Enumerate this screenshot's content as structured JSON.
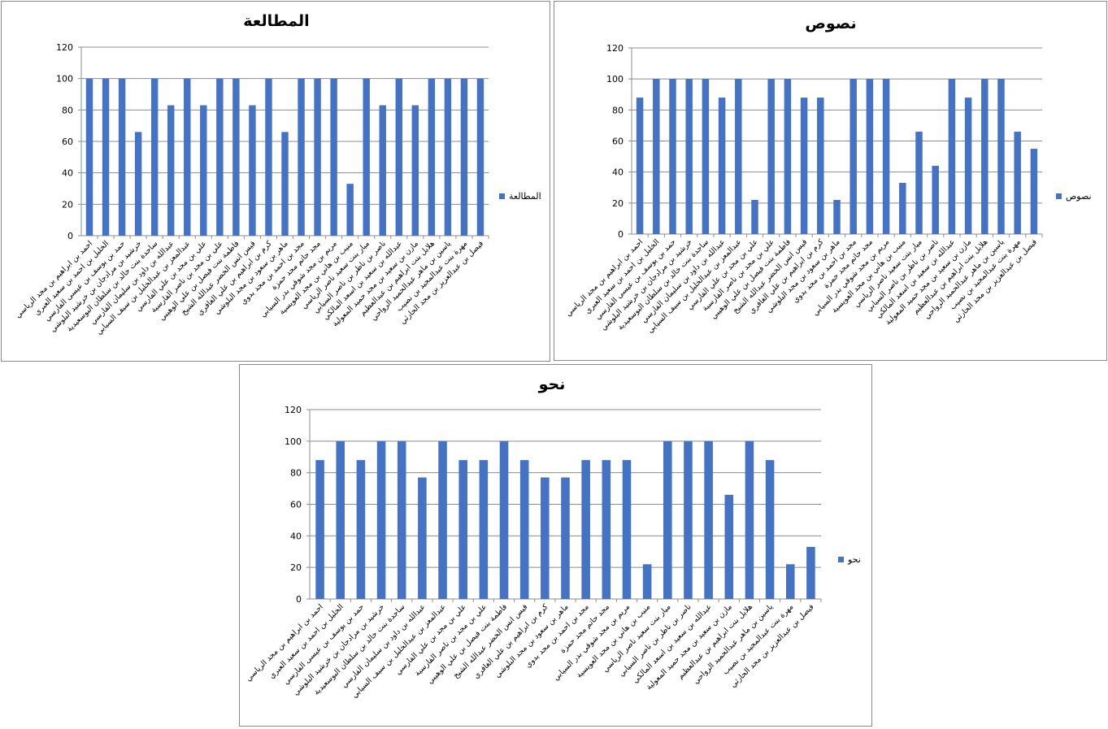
{
  "chart_data": [
    {
      "type": "bar",
      "title": "المطالعة",
      "legend_position": "right",
      "grid": true,
      "ylim": [
        0,
        120
      ],
      "yticks": [
        "0",
        "20",
        "40",
        "60",
        "80",
        "100",
        "120"
      ],
      "color": "#4472C4",
      "categories": [
        "احمد بن ابراهيم بن مجد الرياسي",
        "الخليل بن احمد بن سعيد العبري",
        "حمد بن يوسف بن عيسى الفارسي",
        "خرشيد بن مرادجان بن خرشيد البلوشي",
        "ساجدة بنت خالد بن سلطان البوسعيدية",
        "عبدالله بن داود بن سليمان الفارسي",
        "عبدالمعز بن عبدالخليل بن سيف السيابي",
        "علي بن مجد بن علي الفارسي",
        "علي بن مجد بن ناصر الفارسية",
        "فاطمة بنت فيصل بن علي الوهيبي",
        "قيس انس الخضر عبدالله الشيخ",
        "كرم بن ابراهيم بن علي الغافري",
        "ماهر بن سعود بن مجد البلوشي",
        "مجد بن احمد بن مجد بدوي",
        "مجد حاتم مجد حمزة",
        "مريم بن مجد شوقي بدر السيابي",
        "منيب بن هاني بن مجد العويسية",
        "ميار بنت سعيد ناصر الرياسي",
        "ناصر بن ناظر بن ناصر السيابي",
        "عبدالله بن سعيد بن اسعد المالكي",
        "مازن بن سعيد بن مجد حميد المعولية",
        "هلايل بنت ابراهيم بن عبدالعظيم",
        "ياسين بن ماهر عبدالحميد الرواحي",
        "مهرة بنت عبدالمجيد بن نصيب",
        "فيصل بن عبدالعزيز بن مجد الحارثي"
      ],
      "series": [
        {
          "name": "المطالعة",
          "values": [
            100,
            100,
            100,
            66,
            100,
            83,
            100,
            83,
            100,
            100,
            83,
            100,
            66,
            100,
            100,
            100,
            33,
            100,
            83,
            100,
            83,
            100,
            100,
            100,
            100
          ]
        }
      ]
    },
    {
      "type": "bar",
      "title": "نصوص",
      "legend_position": "right",
      "grid": true,
      "ylim": [
        0,
        120
      ],
      "yticks": [
        "0",
        "20",
        "40",
        "60",
        "80",
        "100",
        "120"
      ],
      "color": "#4472C4",
      "categories": [
        "احمد بن ابراهيم بن مجد الرياسي",
        "الخليل بن احمد بن سعيد العبري",
        "حمد بن يوسف بن عيسى الفارسي",
        "خرشيد بن مرادجان بن خرشيد البلوشي",
        "ساجدة بنت خالد بن سلطان البوسعيدية",
        "عبدالله بن داود بن سليمان الفارسي",
        "عبدالمعز بن عبدالخليل بن سيف السيابي",
        "علي بن مجد بن علي الفارسي",
        "علي بن مجد بن ناصر الفارسية",
        "فاطمة بنت فيصل بن علي الوهيبي",
        "قيس انس الخضر عبدالله الشيخ",
        "كرم بن ابراهيم بن علي الغافري",
        "ماهر بن سعود بن مجد البلوشي",
        "مجد بن احمد بن مجد بدوي",
        "مجد حاتم مجد حمزة",
        "مريم بن مجد شوقي بدر السيابي",
        "منيب بن هاني بن مجد العويسية",
        "ميار بنت سعيد ناصر الرياسي",
        "ناصر بن ناظر بن ناصر السيابي",
        "عبدالله بن سعيد بن اسعد المالكي",
        "مازن بن سعيد بن مجد حميد المعولية",
        "هلايل بنت ابراهيم بن عبدالعظيم",
        "ياسين بن ماهر عبدالحميد الرواحي",
        "مهرة بنت عبدالمجيد بن نصيب",
        "فيصل بن عبدالعزيز بن مجد الحارثي"
      ],
      "series": [
        {
          "name": "نصوص",
          "values": [
            88,
            100,
            100,
            100,
            100,
            88,
            100,
            22,
            100,
            100,
            88,
            88,
            22,
            100,
            100,
            100,
            33,
            66,
            44,
            100,
            88,
            100,
            100,
            66,
            55
          ]
        }
      ]
    },
    {
      "type": "bar",
      "title": "نحو",
      "legend_position": "right",
      "grid": true,
      "ylim": [
        0,
        120
      ],
      "yticks": [
        "0",
        "20",
        "40",
        "60",
        "80",
        "100",
        "120"
      ],
      "color": "#4472C4",
      "categories": [
        "احمد بن ابراهيم بن مجد الرياسي",
        "الخليل بن احمد بن سعيد العبري",
        "حمد بن يوسف بن عيسى الفارسي",
        "خرشيد بن مرادجان بن خرشيد البلوشي",
        "ساجدة بنت خالد بن سلطان البوسعيدية",
        "عبدالله بن داود بن سليمان الفارسي",
        "عبدالمعز بن عبدالخليل بن سيف السيابي",
        "علي بن مجد بن علي الفارسي",
        "علي بن مجد بن ناصر الفارسية",
        "فاطمة بنت فيصل بن علي الوهيبي",
        "قيس انس الخضر عبدالله الشيخ",
        "كرم بن ابراهيم بن علي الغافري",
        "ماهر بن سعود بن مجد البلوشي",
        "مجد بن احمد بن مجد بدوي",
        "مجد حاتم مجد حمزة",
        "مريم بن مجد شوقي بدر السيابي",
        "منيب بن هاني بن مجد العويسية",
        "ميار بنت سعيد ناصر الرياسي",
        "ناصر بن ناظر بن ناصر السيابي",
        "عبدالله بن سعيد بن اسعد المالكي",
        "مازن بن سعيد بن مجد حميد المعولية",
        "هلايل بنت ابراهيم بن عبدالعظيم",
        "ياسين بن ماهر عبدالحميد الرواحي",
        "مهرة بنت عبدالمجيد بن نصيب",
        "فيصل بن عبدالعزيز بن مجد الحارثي"
      ],
      "series": [
        {
          "name": "نحو",
          "values": [
            88,
            100,
            88,
            100,
            100,
            77,
            100,
            88,
            88,
            100,
            88,
            77,
            77,
            88,
            88,
            88,
            22,
            100,
            100,
            100,
            66,
            100,
            88,
            22,
            33
          ]
        }
      ]
    }
  ]
}
